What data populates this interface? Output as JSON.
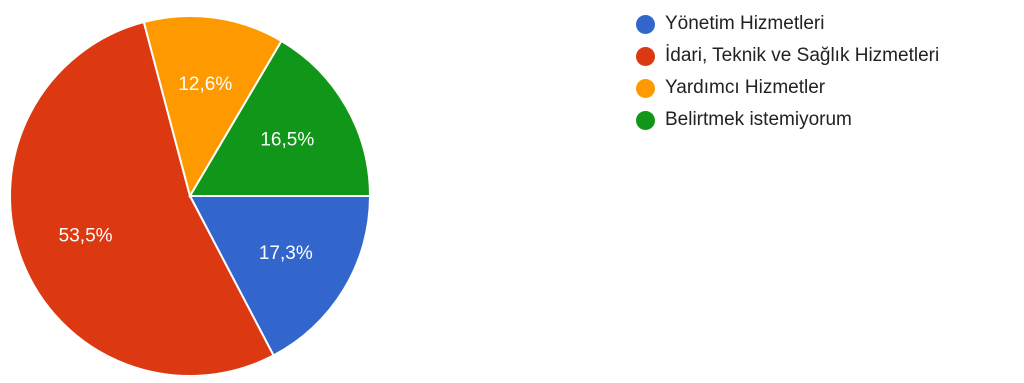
{
  "chart_data": {
    "type": "pie",
    "slices": [
      {
        "name": "Yönetim Hizmetleri",
        "value": 17.3,
        "label": "17,3%",
        "color": "#3366cc"
      },
      {
        "name": "İdari, Teknik ve Sağlık Hizmetleri",
        "value": 53.5,
        "label": "53,5%",
        "color": "#dc3912"
      },
      {
        "name": "Yardımcı Hizmetler",
        "value": 12.6,
        "label": "12,6%",
        "color": "#ff9900"
      },
      {
        "name": "Belirtmek istemiyorum",
        "value": 16.5,
        "label": "16,5%",
        "color": "#109618"
      }
    ],
    "start_direction": "right (3 o'clock)",
    "direction": "clockwise",
    "legend_position": "right"
  }
}
